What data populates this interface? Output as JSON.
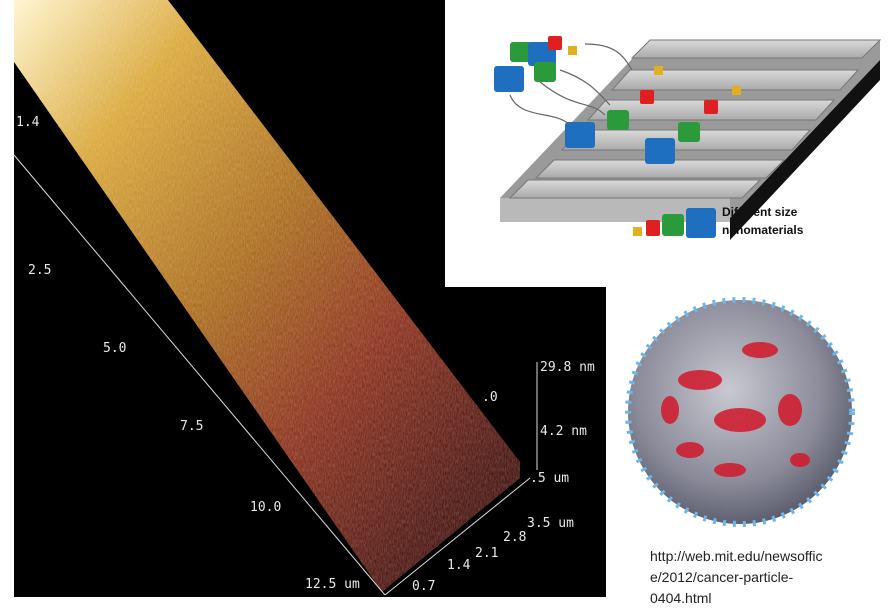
{
  "afm_image": {
    "left_axis_labels": [
      "1.4",
      "2.5",
      "5.0",
      "7.5",
      "10.0",
      "12.5 um"
    ],
    "bottom_axis_labels": [
      "0.7",
      "1.4",
      "2.1",
      "2.8",
      "3.5 um"
    ],
    "z_axis_labels": [
      "29.8 nm",
      "4.2 nm"
    ],
    "partial_labels": [
      ".0",
      ".5 um"
    ]
  },
  "diagram": {
    "caption_lines": [
      "Different size",
      "nanomaterials"
    ]
  },
  "source": {
    "url_lines": [
      "http://web.mit.edu/newsoffic",
      "e/2012/cancer-particle-",
      "0404.html"
    ]
  }
}
